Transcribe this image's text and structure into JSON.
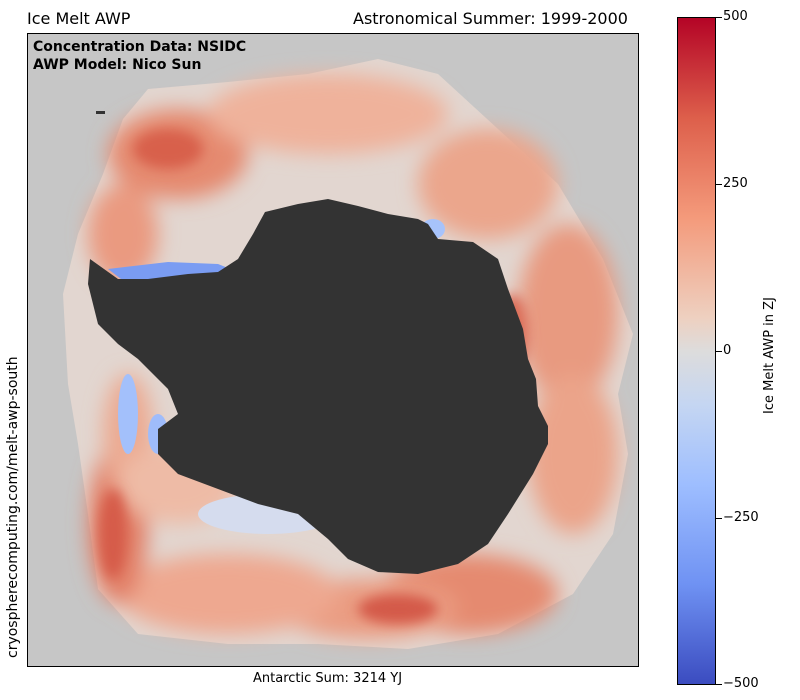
{
  "header": {
    "title_left": "Ice Melt AWP",
    "title_right": "Astronomical Summer: 1999-2000"
  },
  "map": {
    "annotation_line1": "Concentration Data: NSIDC",
    "annotation_line2": "AWP Model: Nico Sun",
    "side_label": "cryospherecomputing.com/melt-awp-south",
    "bottom_label": "Antarctic Sum: 3214 YJ",
    "colors": {
      "land": "#333333",
      "no_data": "#c6c6c6",
      "neutral_ice": "#e2d6d0"
    }
  },
  "colorbar": {
    "title": "Ice Melt AWP in ZJ",
    "ticks": [
      "500",
      "250",
      "0",
      "−250",
      "−500"
    ],
    "colors": {
      "max": "#b40426",
      "mid": "#dddcdc",
      "min": "#3b4cc0"
    }
  }
}
